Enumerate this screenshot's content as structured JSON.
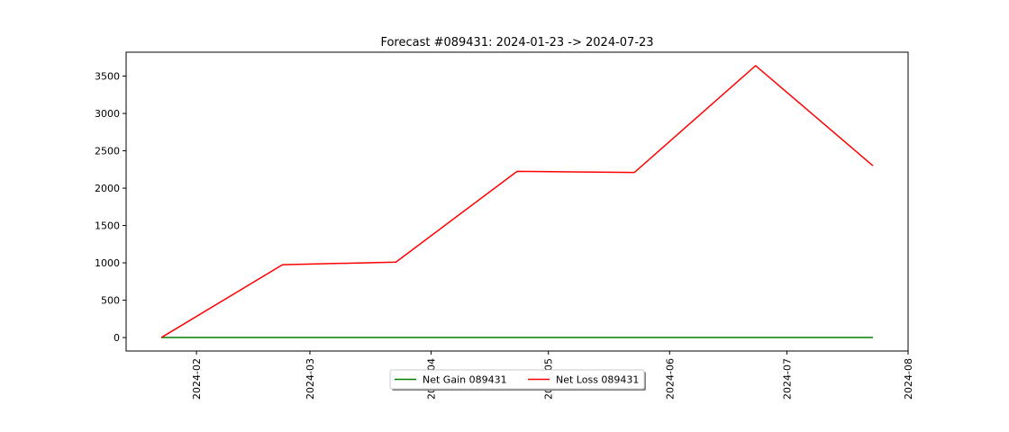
{
  "chart_data": {
    "type": "line",
    "title": "Forecast #089431: 2024-01-23 -> 2024-07-23",
    "xlabel": "",
    "ylabel": "",
    "x": [
      "2024-01-23",
      "2024-02-23",
      "2024-03-23",
      "2024-04-23",
      "2024-05-23",
      "2024-06-23",
      "2024-07-23"
    ],
    "x_ticks": [
      "2024-02",
      "2024-03",
      "2024-04",
      "2024-05",
      "2024-06",
      "2024-07",
      "2024-08"
    ],
    "y_ticks": [
      0,
      500,
      1000,
      1500,
      2000,
      2500,
      3000,
      3500
    ],
    "ylim": [
      -180,
      3820
    ],
    "xlim": [
      "2024-01-14",
      "2024-08-01"
    ],
    "series": [
      {
        "name": "Net Gain 089431",
        "color": "#008000",
        "values": [
          0,
          0,
          0,
          0,
          0,
          0,
          0
        ]
      },
      {
        "name": "Net Loss 089431",
        "color": "#ff0000",
        "values": [
          0,
          975,
          1010,
          2225,
          2210,
          3640,
          2300
        ]
      }
    ],
    "legend_position": "bottom-center",
    "grid": false
  }
}
